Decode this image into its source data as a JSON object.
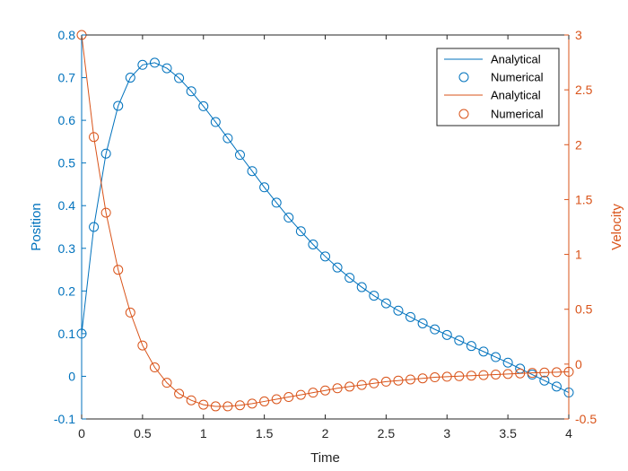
{
  "chart_data": {
    "type": "line",
    "xlabel": "Time",
    "ylabel_left": "Position",
    "ylabel_right": "Velocity",
    "xlim": [
      0,
      4
    ],
    "ylim_left": [
      -0.1,
      0.8
    ],
    "ylim_right": [
      -0.5,
      3
    ],
    "x_ticks": [
      "0",
      "0.5",
      "1",
      "1.5",
      "2",
      "2.5",
      "3",
      "3.5",
      "4"
    ],
    "y_left_ticks": [
      "-0.1",
      "0",
      "0.1",
      "0.2",
      "0.3",
      "0.4",
      "0.5",
      "0.6",
      "0.7",
      "0.8"
    ],
    "y_right_ticks": [
      "-0.5",
      "0",
      "0.5",
      "1",
      "1.5",
      "2",
      "2.5",
      "3"
    ],
    "grid": false,
    "legend_position": "top-right",
    "colors": {
      "position": "#0072BD",
      "velocity": "#D95319",
      "axes": "#262626"
    },
    "legend": [
      {
        "label": "Analytical",
        "style": "line",
        "color": "#0072BD"
      },
      {
        "label": "Numerical",
        "style": "marker",
        "color": "#0072BD"
      },
      {
        "label": "Analytical",
        "style": "line",
        "color": "#D95319"
      },
      {
        "label": "Numerical",
        "style": "marker",
        "color": "#D95319"
      }
    ],
    "x": [
      0,
      0.1,
      0.2,
      0.3,
      0.4,
      0.5,
      0.6,
      0.7,
      0.8,
      0.9,
      1.0,
      1.1,
      1.2,
      1.3,
      1.4,
      1.5,
      1.6,
      1.7,
      1.8,
      1.9,
      2.0,
      2.1,
      2.2,
      2.3,
      2.4,
      2.5,
      2.6,
      2.7,
      2.8,
      2.9,
      3.0,
      3.1,
      3.2,
      3.3,
      3.4,
      3.5,
      3.6,
      3.7,
      3.8,
      3.9,
      4.0
    ],
    "series": [
      {
        "name": "Analytical",
        "axis": "left",
        "values": [
          0.1,
          0.35,
          0.522,
          0.634,
          0.7,
          0.73,
          0.735,
          0.722,
          0.699,
          0.668,
          0.633,
          0.596,
          0.558,
          0.519,
          0.481,
          0.443,
          0.407,
          0.372,
          0.34,
          0.309,
          0.281,
          0.255,
          0.231,
          0.209,
          0.189,
          0.171,
          0.154,
          0.139,
          0.124,
          0.11,
          0.097,
          0.084,
          0.071,
          0.058,
          0.045,
          0.032,
          0.018,
          0.004,
          -0.01,
          -0.024,
          -0.038
        ]
      },
      {
        "name": "Numerical",
        "axis": "left",
        "values": [
          0.1,
          0.35,
          0.522,
          0.634,
          0.7,
          0.73,
          0.735,
          0.722,
          0.699,
          0.668,
          0.633,
          0.596,
          0.558,
          0.519,
          0.481,
          0.443,
          0.407,
          0.372,
          0.34,
          0.309,
          0.281,
          0.255,
          0.231,
          0.209,
          0.189,
          0.171,
          0.154,
          0.139,
          0.124,
          0.11,
          0.097,
          0.084,
          0.071,
          0.058,
          0.045,
          0.032,
          0.018,
          0.004,
          -0.01,
          -0.024,
          -0.038
        ]
      },
      {
        "name": "Analytical",
        "axis": "right",
        "values": [
          3.0,
          2.07,
          1.38,
          0.86,
          0.47,
          0.17,
          -0.03,
          -0.17,
          -0.27,
          -0.33,
          -0.37,
          -0.385,
          -0.385,
          -0.375,
          -0.36,
          -0.34,
          -0.32,
          -0.3,
          -0.28,
          -0.26,
          -0.24,
          -0.22,
          -0.205,
          -0.19,
          -0.175,
          -0.16,
          -0.15,
          -0.14,
          -0.13,
          -0.12,
          -0.115,
          -0.11,
          -0.105,
          -0.1,
          -0.095,
          -0.09,
          -0.085,
          -0.08,
          -0.077,
          -0.074,
          -0.07
        ]
      },
      {
        "name": "Numerical",
        "axis": "right",
        "values": [
          3.0,
          2.07,
          1.38,
          0.86,
          0.47,
          0.17,
          -0.03,
          -0.17,
          -0.27,
          -0.33,
          -0.37,
          -0.385,
          -0.385,
          -0.375,
          -0.36,
          -0.34,
          -0.32,
          -0.3,
          -0.28,
          -0.26,
          -0.24,
          -0.22,
          -0.205,
          -0.19,
          -0.175,
          -0.16,
          -0.15,
          -0.14,
          -0.13,
          -0.12,
          -0.115,
          -0.11,
          -0.105,
          -0.1,
          -0.095,
          -0.09,
          -0.085,
          -0.08,
          -0.077,
          -0.074,
          -0.07
        ]
      }
    ]
  }
}
